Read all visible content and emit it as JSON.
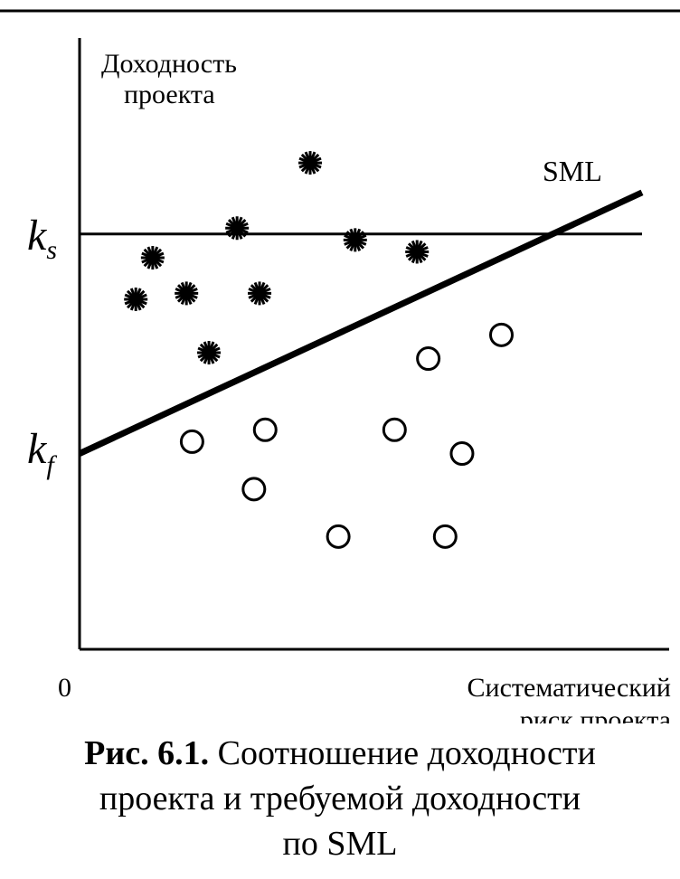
{
  "chart_data": {
    "type": "scatter",
    "ylabel": [
      "Доходность",
      "проекта"
    ],
    "xlabel": [
      "Систематический",
      "риск проекта"
    ],
    "origin_label": "0",
    "y_tick_labels": [
      {
        "name": "k_s",
        "base": "k",
        "sub": "s",
        "value": 7.0
      },
      {
        "name": "k_f",
        "base": "k",
        "sub": "f",
        "value": 3.3
      }
    ],
    "xlim": [
      0,
      10
    ],
    "ylim": [
      0,
      10
    ],
    "lines": [
      {
        "name": "SML",
        "label": "SML",
        "x": [
          0,
          10
        ],
        "y": [
          3.3,
          7.7
        ]
      },
      {
        "name": "k_s level",
        "label": "",
        "x": [
          0,
          10
        ],
        "y": [
          7.0,
          7.0
        ]
      }
    ],
    "series": [
      {
        "marker": "star",
        "points": [
          {
            "x": 1.0,
            "y": 5.9
          },
          {
            "x": 1.3,
            "y": 6.6
          },
          {
            "x": 1.9,
            "y": 6.0
          },
          {
            "x": 2.3,
            "y": 5.0
          },
          {
            "x": 2.8,
            "y": 7.1
          },
          {
            "x": 3.2,
            "y": 6.0
          },
          {
            "x": 4.1,
            "y": 8.2
          },
          {
            "x": 4.9,
            "y": 6.9
          },
          {
            "x": 6.0,
            "y": 6.7
          }
        ]
      },
      {
        "marker": "circle",
        "points": [
          {
            "x": 2.0,
            "y": 3.5
          },
          {
            "x": 3.1,
            "y": 2.7
          },
          {
            "x": 3.3,
            "y": 3.7
          },
          {
            "x": 4.6,
            "y": 1.9
          },
          {
            "x": 5.6,
            "y": 3.7
          },
          {
            "x": 6.2,
            "y": 4.9
          },
          {
            "x": 6.5,
            "y": 1.9
          },
          {
            "x": 6.8,
            "y": 3.3
          },
          {
            "x": 7.5,
            "y": 5.3
          }
        ]
      }
    ]
  },
  "caption": {
    "lead": "Рис. 6.1.",
    "lines": [
      "Соотношение доходности",
      "проекта и требуемой доходности",
      "по SML"
    ]
  }
}
